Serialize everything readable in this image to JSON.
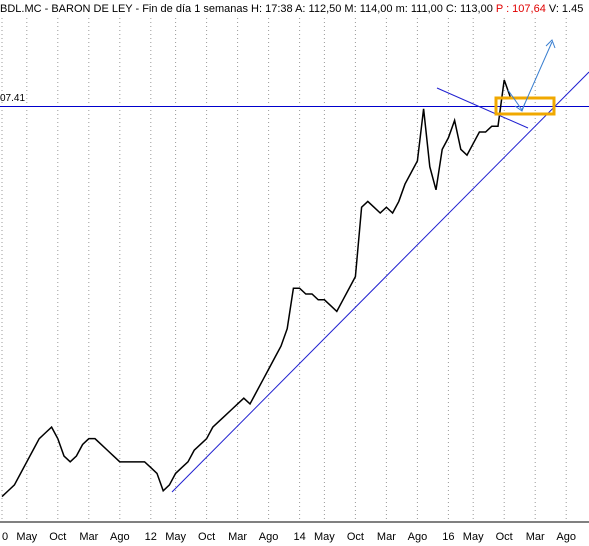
{
  "chart_data": {
    "type": "line",
    "title": "BDL.MC - BARON DE LEY - Fin de día 1 semanas H: 17:38 A: 112,50 M: 114,00 m: 111,00 C: 113,00",
    "price_label": "P : 107,64",
    "price_color": "#e00000",
    "volume_label": "V: 1.45",
    "categories": [
      "0",
      null,
      null,
      null,
      "May",
      null,
      null,
      null,
      null,
      "Oct",
      null,
      null,
      null,
      null,
      "Mar",
      null,
      null,
      null,
      null,
      "Ago",
      null,
      null,
      null,
      null,
      "12",
      null,
      null,
      null,
      "May",
      null,
      null,
      null,
      null,
      "Oct",
      null,
      null,
      null,
      null,
      "Mar",
      null,
      null,
      null,
      null,
      "Ago",
      null,
      null,
      null,
      null,
      "14",
      null,
      null,
      null,
      "May",
      null,
      null,
      null,
      null,
      "Oct",
      null,
      null,
      null,
      null,
      "Mar",
      null,
      null,
      null,
      null,
      "Ago",
      null,
      null,
      null,
      null,
      "16",
      null,
      null,
      null,
      "May",
      null,
      null,
      null,
      null,
      "Oct",
      null,
      null,
      null,
      null,
      "Mar",
      null,
      null,
      null,
      null,
      "Ago",
      null,
      null
    ],
    "series": [
      {
        "color": "#000000",
        "values": [
          40,
          41,
          42,
          44,
          46,
          48,
          50,
          51,
          52,
          50,
          47,
          46,
          47,
          49,
          50,
          50,
          49,
          48,
          47,
          46,
          46,
          46,
          46,
          46,
          45,
          44,
          41,
          42,
          44,
          45,
          46,
          48,
          49,
          50,
          52,
          53,
          54,
          55,
          56,
          57,
          56,
          58,
          60,
          62,
          64,
          66,
          69,
          76,
          76,
          75,
          75,
          74,
          74,
          73,
          72,
          74,
          76,
          78,
          90,
          91,
          90,
          89,
          90,
          89,
          91,
          94,
          96,
          98,
          107,
          97,
          93,
          100,
          102,
          105,
          100,
          99,
          101,
          103,
          103,
          104,
          104,
          112,
          109,
          null,
          null,
          null,
          null,
          null,
          null,
          null,
          null,
          null,
          null,
          null
        ]
      }
    ],
    "ref_line": {
      "value": 107.41,
      "label": "07.41",
      "color": "#0000cc"
    },
    "ylim": [
      35.6,
      122.7
    ],
    "grid": true
  }
}
